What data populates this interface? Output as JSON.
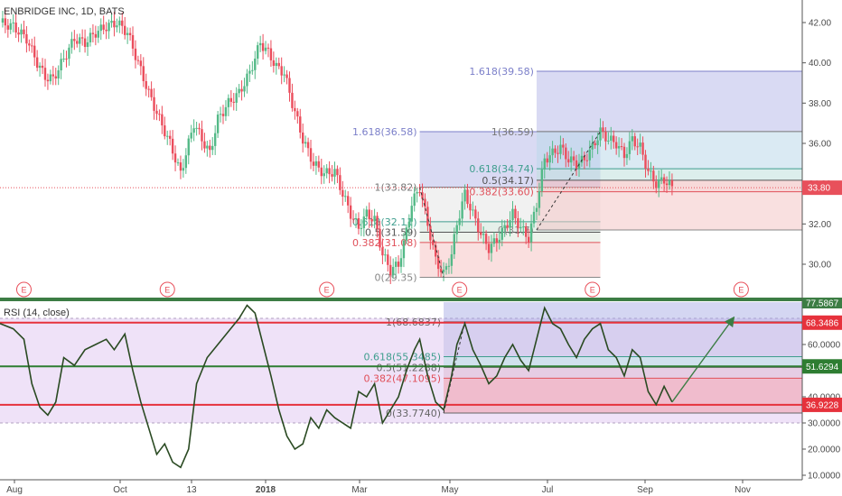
{
  "chart_data": [
    {
      "type": "candlestick",
      "title": "ENBRIDGE INC, 1D, BATS",
      "ylim": [
        29,
        43
      ],
      "y_ticks": [
        "42.00",
        "40.00",
        "38.00",
        "36.00",
        "34.00",
        "32.00",
        "30.00"
      ],
      "x_ticks": [
        "Aug",
        "Oct",
        "13",
        "2018",
        "Mar",
        "May",
        "Jul",
        "Sep",
        "Nov"
      ],
      "last_price_label": "33.80",
      "last_price": 33.8,
      "colors": {
        "up": "#53b987",
        "down": "#eb4d5c",
        "fib_blue": "#8e92d8"
      },
      "close_path": [
        [
          0,
          42.0
        ],
        [
          5,
          41.8
        ],
        [
          10,
          41.2
        ],
        [
          14,
          40.0
        ],
        [
          17,
          39.3
        ],
        [
          20,
          39.2
        ],
        [
          24,
          40.2
        ],
        [
          28,
          41.2
        ],
        [
          32,
          41.0
        ],
        [
          36,
          41.5
        ],
        [
          40,
          41.8
        ],
        [
          44,
          42.0
        ],
        [
          48,
          41.5
        ],
        [
          52,
          40.0
        ],
        [
          56,
          38.5
        ],
        [
          60,
          37.2
        ],
        [
          64,
          36.0
        ],
        [
          68,
          34.5
        ],
        [
          70,
          35.5
        ],
        [
          73,
          37.0
        ],
        [
          76,
          36.2
        ],
        [
          79,
          35.5
        ],
        [
          82,
          37.2
        ],
        [
          86,
          38.0
        ],
        [
          90,
          38.5
        ],
        [
          94,
          39.5
        ],
        [
          98,
          41.0
        ],
        [
          101,
          40.5
        ],
        [
          104,
          39.8
        ],
        [
          107,
          39.5
        ],
        [
          110,
          38.0
        ],
        [
          114,
          36.2
        ],
        [
          118,
          35.0
        ],
        [
          122,
          34.5
        ],
        [
          126,
          34.6
        ],
        [
          129,
          33.5
        ],
        [
          132,
          32.5
        ],
        [
          135,
          31.8
        ],
        [
          138,
          32.5
        ],
        [
          141,
          32.2
        ],
        [
          144,
          30.5
        ],
        [
          147,
          29.7
        ],
        [
          150,
          30.0
        ],
        [
          152,
          31.0
        ],
        [
          155,
          33.0
        ],
        [
          158,
          33.82
        ],
        [
          161,
          32.0
        ],
        [
          164,
          30.2
        ],
        [
          167,
          29.5
        ],
        [
          170,
          30.5
        ],
        [
          172,
          32.0
        ],
        [
          175,
          33.5
        ],
        [
          178,
          32.5
        ],
        [
          181,
          31.5
        ],
        [
          184,
          30.8
        ],
        [
          187,
          31.2
        ],
        [
          190,
          31.8
        ],
        [
          193,
          32.5
        ],
        [
          196,
          31.8
        ],
        [
          199,
          31.3
        ],
        [
          202,
          33.0
        ],
        [
          205,
          35.2
        ],
        [
          208,
          35.5
        ],
        [
          211,
          35.8
        ],
        [
          214,
          35.2
        ],
        [
          217,
          35.0
        ],
        [
          220,
          35.2
        ],
        [
          223,
          35.8
        ],
        [
          226,
          36.59
        ],
        [
          229,
          36.2
        ],
        [
          232,
          36.0
        ],
        [
          235,
          35.4
        ],
        [
          238,
          36.2
        ],
        [
          241,
          35.8
        ],
        [
          244,
          34.6
        ],
        [
          247,
          34.0
        ],
        [
          250,
          34.2
        ],
        [
          253,
          33.8
        ]
      ],
      "fib_retracements": [
        {
          "x_range": [
            158,
            226
          ],
          "levels": [
            {
              "label": "1.618(36.58)",
              "value": 36.58
            },
            {
              "label": "1(33.82)",
              "value": 33.82
            },
            {
              "label": "0.618(32.11)",
              "value": 32.11
            },
            {
              "label": "0.5(31.59)",
              "value": 31.59
            },
            {
              "label": "0.382(31.08)",
              "value": 31.08
            },
            {
              "label": "0(29.35)",
              "value": 29.35
            }
          ]
        },
        {
          "x_range": [
            202,
            302
          ],
          "levels": [
            {
              "label": "1.618(39.58)",
              "value": 39.58
            },
            {
              "label": "1(36.59)",
              "value": 36.59
            },
            {
              "label": "0.618(34.74)",
              "value": 34.74
            },
            {
              "label": "0.5(34.17)",
              "value": 34.17
            },
            {
              "label": "0.382(33.60)",
              "value": 33.6
            },
            {
              "label": "0(31.7)",
              "value": 31.7
            }
          ]
        }
      ],
      "earnings_markers": [
        "E",
        "E",
        "E",
        "E",
        "E",
        "E"
      ],
      "earnings_x": [
        9,
        63,
        123,
        173,
        223,
        279
      ]
    },
    {
      "type": "line",
      "title": "RSI (14, close)",
      "ylim": [
        10,
        80
      ],
      "y_ticks": [
        "60.0000",
        "40.0000",
        "30.0000",
        "20.0000",
        "10.0000"
      ],
      "top_value_label": "77.5867",
      "horizontal_lines": [
        {
          "label": "68.3486",
          "value": 68.3486,
          "color": "#e6323c"
        },
        {
          "label": "51.6294",
          "value": 51.6294,
          "color": "#2e7d32"
        },
        {
          "label": "36.9228",
          "value": 36.9228,
          "color": "#e6323c"
        }
      ],
      "fib_levels": [
        {
          "label": "1(68.6837)",
          "value": 68.6837
        },
        {
          "label": "0.618(55.3485)",
          "value": 55.3485
        },
        {
          "label": "0.5(51.2288)",
          "value": 51.2288
        },
        {
          "label": "0.382(47.1095)",
          "value": 47.1095
        },
        {
          "label": "0(33.7740)",
          "value": 33.774
        }
      ],
      "rsi_path": [
        [
          0,
          68
        ],
        [
          5,
          66
        ],
        [
          9,
          62
        ],
        [
          12,
          45
        ],
        [
          15,
          36
        ],
        [
          18,
          33
        ],
        [
          21,
          38
        ],
        [
          24,
          55
        ],
        [
          28,
          52
        ],
        [
          32,
          58
        ],
        [
          36,
          60
        ],
        [
          40,
          62
        ],
        [
          43,
          58
        ],
        [
          47,
          64
        ],
        [
          50,
          50
        ],
        [
          53,
          38
        ],
        [
          56,
          28
        ],
        [
          59,
          18
        ],
        [
          62,
          22
        ],
        [
          65,
          15
        ],
        [
          68,
          13
        ],
        [
          71,
          20
        ],
        [
          74,
          45
        ],
        [
          78,
          55
        ],
        [
          82,
          60
        ],
        [
          86,
          65
        ],
        [
          90,
          70
        ],
        [
          93,
          75
        ],
        [
          96,
          72
        ],
        [
          99,
          60
        ],
        [
          102,
          48
        ],
        [
          105,
          35
        ],
        [
          108,
          25
        ],
        [
          111,
          20
        ],
        [
          114,
          22
        ],
        [
          117,
          32
        ],
        [
          120,
          28
        ],
        [
          123,
          35
        ],
        [
          126,
          32
        ],
        [
          129,
          30
        ],
        [
          132,
          28
        ],
        [
          135,
          42
        ],
        [
          138,
          40
        ],
        [
          141,
          45
        ],
        [
          144,
          30
        ],
        [
          147,
          35
        ],
        [
          150,
          40
        ],
        [
          153,
          50
        ],
        [
          156,
          58
        ],
        [
          158,
          62
        ],
        [
          161,
          48
        ],
        [
          164,
          38
        ],
        [
          167,
          35
        ],
        [
          170,
          48
        ],
        [
          172,
          60
        ],
        [
          175,
          68
        ],
        [
          178,
          58
        ],
        [
          181,
          52
        ],
        [
          184,
          45
        ],
        [
          187,
          48
        ],
        [
          190,
          55
        ],
        [
          193,
          60
        ],
        [
          196,
          54
        ],
        [
          199,
          50
        ],
        [
          202,
          62
        ],
        [
          205,
          74
        ],
        [
          208,
          68
        ],
        [
          211,
          66
        ],
        [
          214,
          60
        ],
        [
          217,
          55
        ],
        [
          220,
          62
        ],
        [
          223,
          66
        ],
        [
          226,
          68
        ],
        [
          229,
          58
        ],
        [
          232,
          55
        ],
        [
          235,
          48
        ],
        [
          238,
          58
        ],
        [
          241,
          55
        ],
        [
          244,
          42
        ],
        [
          247,
          37
        ],
        [
          250,
          44
        ],
        [
          253,
          38
        ]
      ],
      "projection": [
        [
          253,
          38
        ],
        [
          276,
          70
        ]
      ]
    }
  ]
}
